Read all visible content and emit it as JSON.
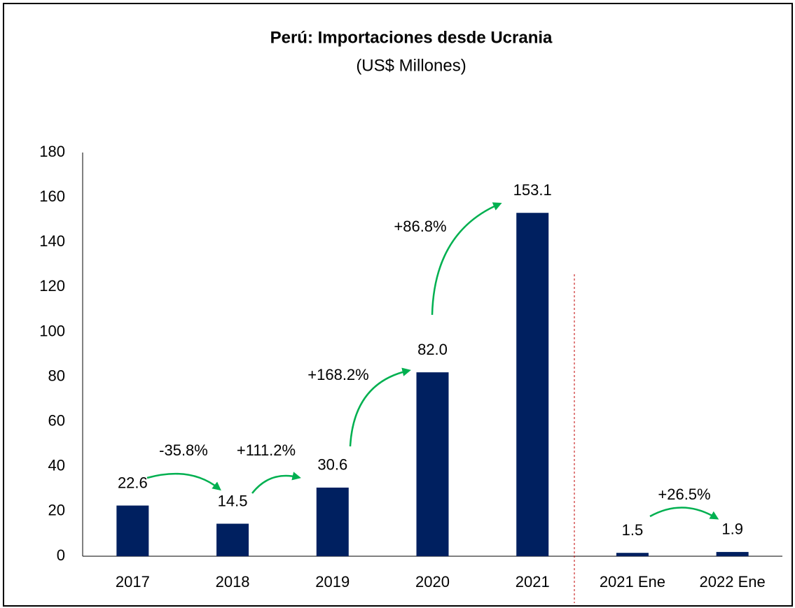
{
  "chart_data": {
    "type": "bar",
    "title": "Perú: Importaciones desde Ucrania",
    "subtitle": "(US$ Millones)",
    "categories": [
      "2017",
      "2018",
      "2019",
      "2020",
      "2021",
      "2021 Ene",
      "2022 Ene"
    ],
    "values": [
      22.6,
      14.5,
      30.6,
      82.0,
      153.1,
      1.5,
      1.9
    ],
    "value_labels": [
      "22.6",
      "14.5",
      "30.6",
      "82.0",
      "153.1",
      "1.5",
      "1.9"
    ],
    "color": "#002060",
    "ylim": [
      0,
      180
    ],
    "yticks": [
      0,
      20,
      40,
      60,
      80,
      100,
      120,
      140,
      160,
      180
    ],
    "grid": false,
    "annotations": [
      "-35.8%",
      "+111.2%",
      "+168.2%",
      "+86.8%",
      "+26.5%"
    ]
  }
}
